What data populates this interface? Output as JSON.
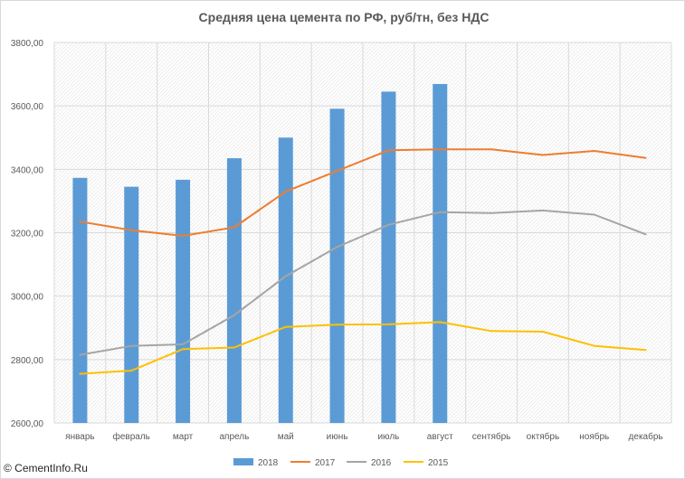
{
  "chart_data": {
    "type": "bar",
    "title": "Средняя цена цемента по РФ, руб/тн, без НДС",
    "categories": [
      "январь",
      "февраль",
      "март",
      "апрель",
      "май",
      "июнь",
      "июль",
      "август",
      "сентябрь",
      "октябрь",
      "ноябрь",
      "декабрь"
    ],
    "ylim": [
      2600,
      3800
    ],
    "yticks": [
      2600,
      2800,
      3000,
      3200,
      3400,
      3600,
      3800
    ],
    "ytick_labels": [
      "2600,00",
      "2800,00",
      "3000,00",
      "3200,00",
      "3400,00",
      "3600,00",
      "3800,00"
    ],
    "grid": true,
    "legend_position": "bottom",
    "series": [
      {
        "name": "2018",
        "kind": "bar",
        "color": "#5b9bd5",
        "values": [
          3373,
          3345,
          3367,
          3435,
          3500,
          3591,
          3645,
          3669,
          null,
          null,
          null,
          null
        ]
      },
      {
        "name": "2017",
        "kind": "line",
        "color": "#ed7d31",
        "values": [
          3235,
          3208,
          3190,
          3217,
          3330,
          3395,
          3460,
          3463,
          3463,
          3445,
          3458,
          3436
        ]
      },
      {
        "name": "2016",
        "kind": "line",
        "color": "#a5a5a5",
        "values": [
          2815,
          2843,
          2848,
          2940,
          3063,
          3155,
          3225,
          3265,
          3262,
          3270,
          3257,
          3195
        ]
      },
      {
        "name": "2015",
        "kind": "line",
        "color": "#ffc000",
        "values": [
          2755,
          2765,
          2833,
          2838,
          2903,
          2910,
          2911,
          2918,
          2890,
          2888,
          2843,
          2830
        ]
      }
    ]
  },
  "footer": {
    "copyright": "© CementInfo.Ru"
  }
}
